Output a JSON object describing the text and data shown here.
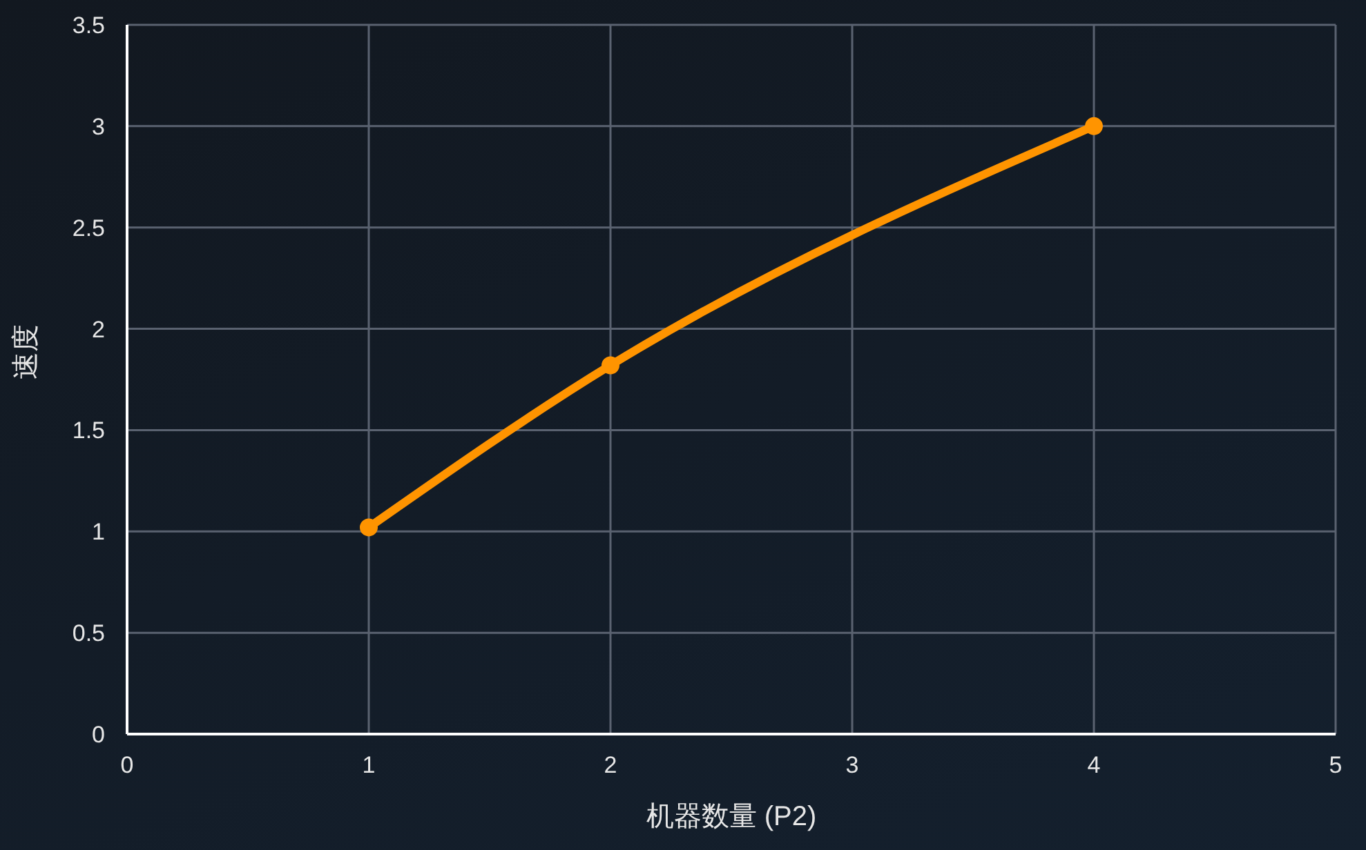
{
  "chart_data": {
    "type": "line",
    "xlabel": "机器数量 (P2)",
    "ylabel": "速度",
    "x": [
      1,
      2,
      4
    ],
    "series": [
      {
        "color": "#ff9400",
        "values": [
          1.02,
          1.82,
          3.0
        ]
      }
    ],
    "xlim": [
      0,
      5
    ],
    "xticks": [
      0,
      1,
      2,
      3,
      4,
      5
    ],
    "ylim": [
      0,
      3.5
    ],
    "yticks": [
      0,
      0.5,
      1,
      1.5,
      2,
      2.5,
      3,
      3.5
    ],
    "grid": true,
    "marker": "circle",
    "line_style": "solid"
  }
}
